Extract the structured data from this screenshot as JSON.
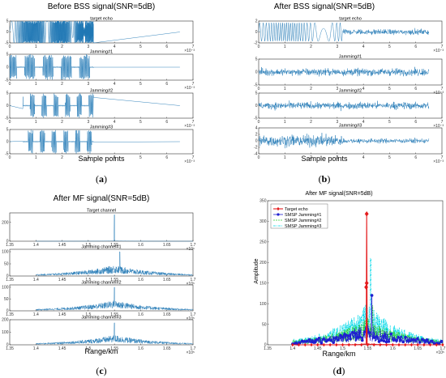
{
  "colors": {
    "signal": "#1f77b4",
    "target_echo": "#e41a1c",
    "smsp1": "#1f1fd0",
    "smsp2": "#33cc33",
    "smsp3": "#00d8e8"
  },
  "panels": {
    "a": {
      "title": "Before BSS signal(SNR=5dB)",
      "caption_prefix": "(",
      "caption_letter": "a",
      "caption_suffix": ")",
      "xlabel": "Sample points",
      "exponent": "×10⁻³",
      "x_ticks": [
        "0",
        "1",
        "2",
        "3",
        "4",
        "5",
        "6",
        "7"
      ],
      "channels": [
        {
          "title": "target echo",
          "y_ticks": [
            "5",
            "0",
            "-5"
          ],
          "y_range": [
            -5,
            5
          ],
          "signal_end": 3.2
        },
        {
          "title": "Jamming#1",
          "y_ticks": [
            "5",
            "0",
            "-5"
          ],
          "y_range": [
            -5,
            5
          ],
          "signal_end": 3.2
        },
        {
          "title": "Jamming#2",
          "y_ticks": [
            "5",
            "0",
            "-5"
          ],
          "y_range": [
            -5,
            5
          ],
          "signal_end": 3.2
        },
        {
          "title": "Jamming#3",
          "y_ticks": [
            "5",
            "0",
            "-5"
          ],
          "y_range": [
            -5,
            5
          ],
          "signal_end": 3.2
        }
      ]
    },
    "b": {
      "title": "After BSS signal(SNR=5dB)",
      "caption_prefix": "(",
      "caption_letter": "b",
      "caption_suffix": ")",
      "xlabel": "Sample points",
      "exponent": "×10⁻³",
      "x_ticks": [
        "0",
        "1",
        "2",
        "3",
        "4",
        "5",
        "6",
        "7"
      ],
      "channels": [
        {
          "title": "target echo",
          "y_ticks": [
            "2",
            "0",
            "-2"
          ],
          "y_range": [
            -2,
            2
          ]
        },
        {
          "title": "Jamming#1",
          "y_ticks": [
            "5",
            "0",
            "-5"
          ],
          "y_range": [
            -5,
            5
          ]
        },
        {
          "title": "Jamming#2",
          "y_ticks": [
            "5",
            "0",
            "-5"
          ],
          "y_range": [
            -5,
            5
          ]
        },
        {
          "title": "Jamming#3",
          "y_ticks": [
            "4",
            "2",
            "0",
            "-2",
            "-4"
          ],
          "y_range": [
            -4,
            4
          ]
        }
      ]
    },
    "c": {
      "title": "After MF signal(SNR=5dB)",
      "caption_prefix": "(",
      "caption_letter": "c",
      "caption_suffix": ")",
      "xlabel": "Range/km",
      "exponent": "×10⁵",
      "x_ticks": [
        "1.35",
        "1.4",
        "1.45",
        "1.5",
        "1.55",
        "1.6",
        "1.65",
        "1.7"
      ],
      "x_range": [
        1.35,
        1.7
      ],
      "channels": [
        {
          "title": "Target channel",
          "y_ticks": [
            "200",
            "0"
          ],
          "y_range": [
            0,
            300
          ]
        },
        {
          "title": "Jamming channel#1",
          "y_ticks": [
            "100",
            "50",
            "0"
          ],
          "y_range": [
            0,
            110
          ]
        },
        {
          "title": "Jamming channel#2",
          "y_ticks": [
            "100",
            "50",
            "0"
          ],
          "y_range": [
            0,
            110
          ]
        },
        {
          "title": "Jamming channel#3",
          "y_ticks": [
            "200",
            "100",
            "0"
          ],
          "y_range": [
            0,
            200
          ]
        }
      ]
    },
    "d": {
      "title": "After MF signal(SNR=5dB)",
      "caption_prefix": "(",
      "caption_letter": "d",
      "caption_suffix": ")",
      "xlabel": "Range/km",
      "ylabel": "Amplitude",
      "exponent": "×10⁵",
      "x_ticks": [
        "1.35",
        "1.4",
        "1.45",
        "1.5",
        "1.55",
        "1.6",
        "1.65",
        "1.7"
      ],
      "x_range": [
        1.35,
        1.7
      ],
      "y_ticks": [
        "350",
        "300",
        "250",
        "200",
        "150",
        "100",
        "50",
        "0"
      ],
      "y_range": [
        0,
        350
      ],
      "legend": [
        "Target echo",
        "SMSP Jamming#1",
        "SMSP Jamming#2",
        "SMSP Jamming#3"
      ]
    }
  },
  "chart_data": [
    {
      "type": "line",
      "title": "Before BSS signal(SNR=5dB)",
      "xlabel": "Sample points",
      "x_scale": "×10⁻³",
      "xlim": [
        0,
        7
      ],
      "series": [
        {
          "name": "target echo",
          "ylim": [
            -5,
            5
          ],
          "active_x_range": [
            0,
            3.2
          ],
          "amplitude": 5
        },
        {
          "name": "Jamming#1",
          "ylim": [
            -5,
            5
          ],
          "active_x_range": [
            0,
            3.2
          ],
          "amplitude": 5
        },
        {
          "name": "Jamming#2",
          "ylim": [
            -5,
            5
          ],
          "active_x_range": [
            0.5,
            3.2
          ],
          "amplitude": 5
        },
        {
          "name": "Jamming#3",
          "ylim": [
            -5,
            5
          ],
          "active_x_range": [
            0.5,
            3.2
          ],
          "amplitude": 5
        }
      ]
    },
    {
      "type": "line",
      "title": "After BSS signal(SNR=5dB)",
      "xlabel": "Sample points",
      "x_scale": "×10⁻³",
      "xlim": [
        0,
        7
      ],
      "series": [
        {
          "name": "target echo",
          "ylim": [
            -2,
            2
          ],
          "strong_x_range": [
            0,
            3.2
          ],
          "noise_x_range": [
            3.2,
            6.5
          ]
        },
        {
          "name": "Jamming#1",
          "ylim": [
            -5,
            5
          ],
          "noise_x_range": [
            0,
            6.5
          ]
        },
        {
          "name": "Jamming#2",
          "ylim": [
            -5,
            5
          ],
          "noise_x_range": [
            0,
            6.5
          ]
        },
        {
          "name": "Jamming#3",
          "ylim": [
            -4,
            4
          ],
          "strong_x_range": [
            0,
            3.2
          ],
          "noise_x_range": [
            3.2,
            6.5
          ]
        }
      ]
    },
    {
      "type": "line",
      "title": "After MF signal(SNR=5dB)",
      "xlabel": "Range/km",
      "x_scale": "×10⁵",
      "xlim": [
        1.35,
        1.7
      ],
      "series": [
        {
          "name": "Target channel",
          "ylim": [
            0,
            300
          ],
          "peak_x": 1.55,
          "peak_y": 280
        },
        {
          "name": "Jamming channel#1",
          "ylim": [
            0,
            110
          ],
          "peak_x": 1.56,
          "peak_y": 100
        },
        {
          "name": "Jamming channel#2",
          "ylim": [
            0,
            110
          ],
          "peak_x": 1.55,
          "peak_y": 100
        },
        {
          "name": "Jamming channel#3",
          "ylim": [
            0,
            200
          ],
          "peak_x": 1.55,
          "peak_y": 175
        }
      ]
    },
    {
      "type": "line",
      "title": "After MF signal(SNR=5dB)",
      "xlabel": "Range/km",
      "ylabel": "Amplitude",
      "x_scale": "×10⁵",
      "xlim": [
        1.35,
        1.7
      ],
      "ylim": [
        0,
        350
      ],
      "legend": "top-left",
      "series": [
        {
          "name": "Target echo",
          "peak_x": 1.548,
          "peak_y": 318,
          "marker": "diamond"
        },
        {
          "name": "SMSP Jamming#1",
          "peak_x": 1.558,
          "peak_y": 120,
          "marker": "circle"
        },
        {
          "name": "SMSP Jamming#2",
          "peak_x": 1.56,
          "peak_y": 95
        },
        {
          "name": "SMSP Jamming#3",
          "peak_x": 1.556,
          "peak_y": 210
        }
      ]
    }
  ]
}
